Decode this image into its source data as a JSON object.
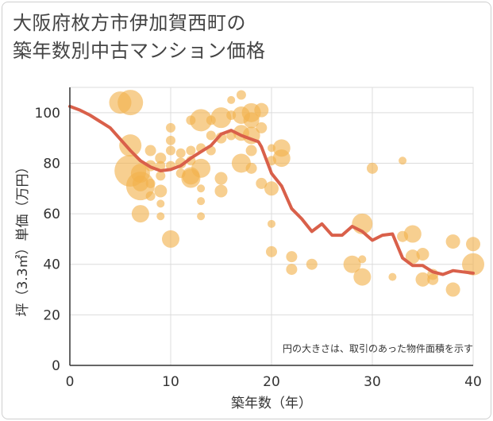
{
  "title_line1": "大阪府枚方市伊加賀西町の",
  "title_line2": "築年数別中古マンション価格",
  "chart_data": {
    "type": "scatter",
    "xlabel": "築年数（年）",
    "ylabel": "坪（3.3㎡）単価（万円）",
    "xlim": [
      0,
      40
    ],
    "ylim": [
      0,
      110
    ],
    "xticks": [
      "0",
      "10",
      "20",
      "30",
      "40"
    ],
    "yticks": [
      "0",
      "20",
      "40",
      "60",
      "80",
      "100"
    ],
    "grid": true,
    "note": "円の大きさは、取引のあった物件面積を示す",
    "colors": {
      "bubble": "#f2b24c",
      "line": "#d9604a"
    },
    "points": [
      {
        "x": 5,
        "y": 104,
        "s": 14
      },
      {
        "x": 6,
        "y": 104,
        "s": 16
      },
      {
        "x": 6,
        "y": 77,
        "s": 20
      },
      {
        "x": 6,
        "y": 87,
        "s": 14
      },
      {
        "x": 7,
        "y": 71,
        "s": 18
      },
      {
        "x": 7,
        "y": 76,
        "s": 12
      },
      {
        "x": 7,
        "y": 60,
        "s": 11
      },
      {
        "x": 7,
        "y": 72,
        "s": 10
      },
      {
        "x": 8,
        "y": 85,
        "s": 7
      },
      {
        "x": 8,
        "y": 79,
        "s": 7
      },
      {
        "x": 8,
        "y": 72,
        "s": 6
      },
      {
        "x": 8,
        "y": 67,
        "s": 6
      },
      {
        "x": 9,
        "y": 82,
        "s": 7
      },
      {
        "x": 9,
        "y": 79,
        "s": 6
      },
      {
        "x": 9,
        "y": 75,
        "s": 6
      },
      {
        "x": 9,
        "y": 69,
        "s": 8
      },
      {
        "x": 9,
        "y": 64,
        "s": 5
      },
      {
        "x": 9,
        "y": 59,
        "s": 5
      },
      {
        "x": 10,
        "y": 94,
        "s": 6
      },
      {
        "x": 10,
        "y": 89,
        "s": 6
      },
      {
        "x": 10,
        "y": 85,
        "s": 6
      },
      {
        "x": 10,
        "y": 79,
        "s": 6
      },
      {
        "x": 10,
        "y": 50,
        "s": 11
      },
      {
        "x": 11,
        "y": 84,
        "s": 6
      },
      {
        "x": 11,
        "y": 80,
        "s": 7
      },
      {
        "x": 11,
        "y": 76,
        "s": 6
      },
      {
        "x": 12,
        "y": 75,
        "s": 11
      },
      {
        "x": 12,
        "y": 74,
        "s": 12
      },
      {
        "x": 12,
        "y": 85,
        "s": 6
      },
      {
        "x": 12,
        "y": 81,
        "s": 6
      },
      {
        "x": 12,
        "y": 97,
        "s": 6
      },
      {
        "x": 13,
        "y": 97,
        "s": 14
      },
      {
        "x": 13,
        "y": 78,
        "s": 12
      },
      {
        "x": 13,
        "y": 86,
        "s": 6
      },
      {
        "x": 13,
        "y": 70,
        "s": 5
      },
      {
        "x": 13,
        "y": 65,
        "s": 5
      },
      {
        "x": 13,
        "y": 59,
        "s": 5
      },
      {
        "x": 14,
        "y": 97,
        "s": 6
      },
      {
        "x": 14,
        "y": 91,
        "s": 6
      },
      {
        "x": 14,
        "y": 85,
        "s": 6
      },
      {
        "x": 15,
        "y": 98,
        "s": 13
      },
      {
        "x": 15,
        "y": 90,
        "s": 7
      },
      {
        "x": 15,
        "y": 74,
        "s": 8
      },
      {
        "x": 15,
        "y": 69,
        "s": 8
      },
      {
        "x": 16,
        "y": 105,
        "s": 5
      },
      {
        "x": 16,
        "y": 99,
        "s": 6
      },
      {
        "x": 16,
        "y": 91,
        "s": 6
      },
      {
        "x": 17,
        "y": 107,
        "s": 6
      },
      {
        "x": 17,
        "y": 99,
        "s": 11
      },
      {
        "x": 17,
        "y": 92,
        "s": 10
      },
      {
        "x": 17,
        "y": 80,
        "s": 12
      },
      {
        "x": 18,
        "y": 100,
        "s": 12
      },
      {
        "x": 18,
        "y": 97,
        "s": 10
      },
      {
        "x": 18,
        "y": 91,
        "s": 11
      },
      {
        "x": 18,
        "y": 85,
        "s": 7
      },
      {
        "x": 18,
        "y": 78,
        "s": 7
      },
      {
        "x": 19,
        "y": 101,
        "s": 9
      },
      {
        "x": 19,
        "y": 94,
        "s": 7
      },
      {
        "x": 19,
        "y": 72,
        "s": 7
      },
      {
        "x": 20,
        "y": 86,
        "s": 5
      },
      {
        "x": 20,
        "y": 81,
        "s": 6
      },
      {
        "x": 20,
        "y": 70,
        "s": 9
      },
      {
        "x": 20,
        "y": 56,
        "s": 5
      },
      {
        "x": 20,
        "y": 45,
        "s": 7
      },
      {
        "x": 21,
        "y": 86,
        "s": 11
      },
      {
        "x": 21,
        "y": 82,
        "s": 11
      },
      {
        "x": 22,
        "y": 43,
        "s": 7
      },
      {
        "x": 22,
        "y": 38,
        "s": 7
      },
      {
        "x": 24,
        "y": 40,
        "s": 7
      },
      {
        "x": 28,
        "y": 40,
        "s": 11
      },
      {
        "x": 29,
        "y": 56,
        "s": 13
      },
      {
        "x": 29,
        "y": 42,
        "s": 5
      },
      {
        "x": 29,
        "y": 35,
        "s": 11
      },
      {
        "x": 30,
        "y": 78,
        "s": 7
      },
      {
        "x": 32,
        "y": 35,
        "s": 5
      },
      {
        "x": 33,
        "y": 81,
        "s": 5
      },
      {
        "x": 33,
        "y": 51,
        "s": 7
      },
      {
        "x": 34,
        "y": 52,
        "s": 11
      },
      {
        "x": 34,
        "y": 43,
        "s": 9
      },
      {
        "x": 35,
        "y": 44,
        "s": 8
      },
      {
        "x": 35,
        "y": 34,
        "s": 9
      },
      {
        "x": 36,
        "y": 34,
        "s": 7
      },
      {
        "x": 36,
        "y": 36,
        "s": 7
      },
      {
        "x": 38,
        "y": 49,
        "s": 9
      },
      {
        "x": 38,
        "y": 30,
        "s": 9
      },
      {
        "x": 40,
        "y": 48,
        "s": 9
      },
      {
        "x": 40,
        "y": 40,
        "s": 14
      }
    ],
    "trend": [
      {
        "x": 0,
        "y": 102.5
      },
      {
        "x": 1,
        "y": 101
      },
      {
        "x": 2,
        "y": 99
      },
      {
        "x": 3,
        "y": 96.5
      },
      {
        "x": 4,
        "y": 94
      },
      {
        "x": 5,
        "y": 89.5
      },
      {
        "x": 6,
        "y": 85
      },
      {
        "x": 7,
        "y": 81
      },
      {
        "x": 8,
        "y": 78.5
      },
      {
        "x": 9,
        "y": 77
      },
      {
        "x": 10,
        "y": 77.5
      },
      {
        "x": 11,
        "y": 79
      },
      {
        "x": 12,
        "y": 82
      },
      {
        "x": 13,
        "y": 84.5
      },
      {
        "x": 14,
        "y": 87
      },
      {
        "x": 15,
        "y": 91.5
      },
      {
        "x": 16,
        "y": 93
      },
      {
        "x": 17,
        "y": 91
      },
      {
        "x": 18,
        "y": 89.5
      },
      {
        "x": 18.7,
        "y": 88.5
      },
      {
        "x": 19,
        "y": 86.5
      },
      {
        "x": 20,
        "y": 76
      },
      {
        "x": 21,
        "y": 71
      },
      {
        "x": 22,
        "y": 62
      },
      {
        "x": 23,
        "y": 58
      },
      {
        "x": 24,
        "y": 53
      },
      {
        "x": 25,
        "y": 56
      },
      {
        "x": 26,
        "y": 51.5
      },
      {
        "x": 27,
        "y": 51.5
      },
      {
        "x": 28,
        "y": 55
      },
      {
        "x": 29,
        "y": 53
      },
      {
        "x": 30,
        "y": 49.5
      },
      {
        "x": 31,
        "y": 51.5
      },
      {
        "x": 32,
        "y": 52
      },
      {
        "x": 33,
        "y": 42.5
      },
      {
        "x": 34,
        "y": 39.5
      },
      {
        "x": 35,
        "y": 39.5
      },
      {
        "x": 36,
        "y": 37
      },
      {
        "x": 37,
        "y": 36
      },
      {
        "x": 38,
        "y": 37.5
      },
      {
        "x": 39,
        "y": 37
      },
      {
        "x": 40,
        "y": 36.5
      }
    ]
  }
}
